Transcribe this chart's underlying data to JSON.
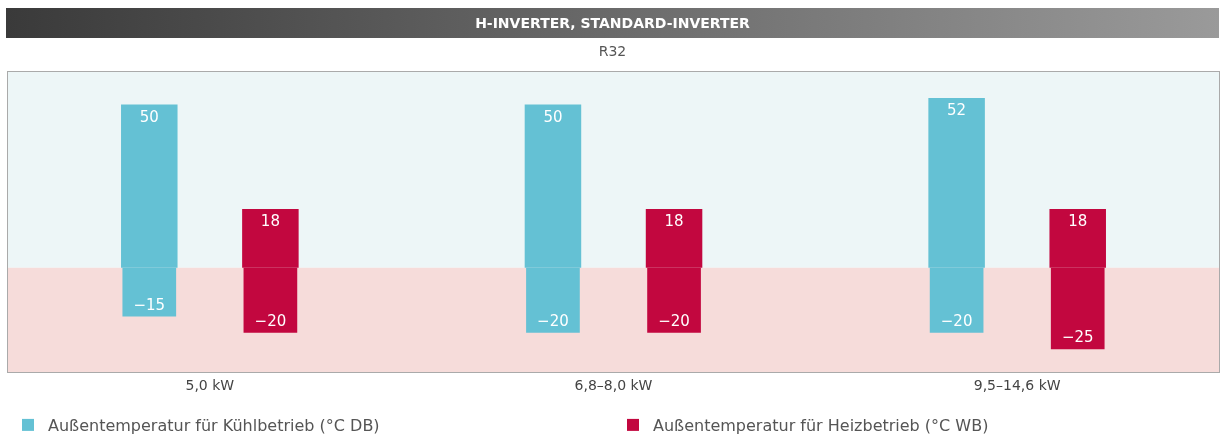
{
  "chart_data": {
    "type": "bar",
    "title": "H-INVERTER, STANDARD-INVERTER",
    "subtitle": "R32",
    "categories": [
      "5,0 kW",
      "6,8–8,0 kW",
      "9,5–14,6 kW"
    ],
    "series": [
      {
        "name": "Außentemperatur für Kühlbetrieb (°C DB)",
        "color": "#64c1d4",
        "values": [
          50,
          50,
          52
        ]
      },
      {
        "color": "#64c1d4",
        "values": [
          -15,
          -20,
          -20
        ]
      },
      {
        "name": "Außentemperatur für Heizbetrieb (°C WB)",
        "color": "#c2073f",
        "values": [
          18,
          18,
          18
        ]
      },
      {
        "color": "#c2073f",
        "values": [
          -20,
          -20,
          -25
        ]
      }
    ],
    "ylim": [
      -32,
      60
    ],
    "tick_labels": "x",
    "grid": false,
    "legend": "bottom",
    "data_labels": true,
    "bands": [
      {
        "axis": "y",
        "from": 0,
        "to": 60,
        "color": "#edf6f7"
      },
      {
        "axis": "y",
        "from": -32,
        "to": 0,
        "color": "#f6dcda"
      }
    ]
  }
}
